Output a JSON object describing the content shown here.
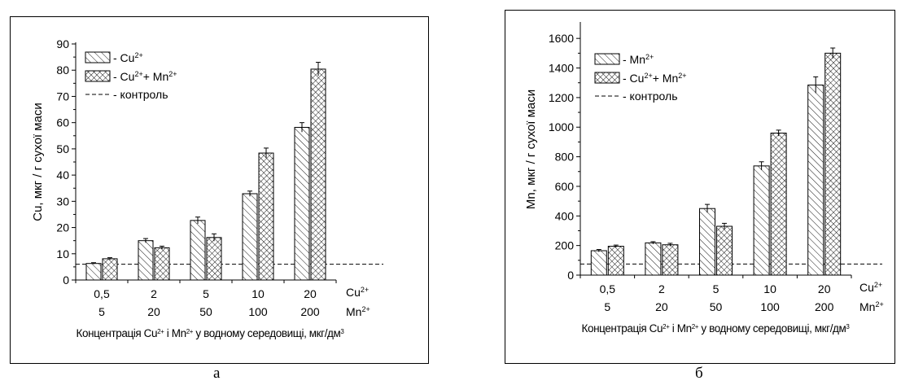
{
  "chart_data": [
    {
      "type": "bar",
      "panel_label": "а",
      "categories_top": [
        "0,5",
        "2",
        "5",
        "10",
        "20"
      ],
      "categories_bottom": [
        "5",
        "20",
        "50",
        "100",
        "200"
      ],
      "row_label_top": {
        "base": "Cu",
        "sup": "2+"
      },
      "row_label_bottom": {
        "base": "Mn",
        "sup": "2+"
      },
      "ylabel": "Cu,  мкг / г  сухої  маси",
      "xlabel": {
        "p1": "Концентрація Cu",
        "s1": "2+",
        "p2": " і Mn",
        "s2": "2+",
        "p3": " у водному середовищі, мкг/дм",
        "s3": "3"
      },
      "yticks": [
        "0",
        "10",
        "20",
        "30",
        "40",
        "50",
        "60",
        "70",
        "80",
        "90"
      ],
      "ylim": [
        0,
        90
      ],
      "control_value": 6,
      "series": [
        {
          "name": "- Cu",
          "sup": "2+",
          "pattern": "diagonal",
          "values": [
            6.3,
            15,
            22.7,
            32.9,
            58.2
          ],
          "errors": [
            0.3,
            0.8,
            1.3,
            1.0,
            1.8
          ]
        },
        {
          "name": "- Cu",
          "sup": "2+",
          "name2": "+ Mn",
          "sup2": "2+",
          "pattern": "crosshatch",
          "values": [
            8.1,
            12.3,
            16.2,
            48.4,
            80.4
          ],
          "errors": [
            0.4,
            0.6,
            1.4,
            1.9,
            2.6
          ]
        }
      ],
      "control_label": "- контроль"
    },
    {
      "type": "bar",
      "panel_label": "б",
      "categories_top": [
        "0,5",
        "2",
        "5",
        "10",
        "20"
      ],
      "categories_bottom": [
        "5",
        "20",
        "50",
        "100",
        "200"
      ],
      "row_label_top": {
        "base": "Cu",
        "sup": "2+"
      },
      "row_label_bottom": {
        "base": "Mn",
        "sup": "2+"
      },
      "ylabel": "Mn,  мкг / г  сухої  маси",
      "xlabel": {
        "p1": "Концентрація Cu",
        "s1": "2+",
        "p2": " і Mn",
        "s2": "2+",
        "p3": " у водному середовищі, мкг/дм",
        "s3": "3"
      },
      "yticks": [
        "0",
        "200",
        "400",
        "600",
        "800",
        "1000",
        "1200",
        "1400",
        "1600"
      ],
      "ylim": [
        0,
        1700
      ],
      "control_value": 75,
      "series": [
        {
          "name": "- Mn",
          "sup": "2+",
          "pattern": "diagonal",
          "values": [
            165,
            218,
            450,
            738,
            1285
          ],
          "errors": [
            8,
            8,
            28,
            28,
            55
          ]
        },
        {
          "name": "- Cu",
          "sup": "2+",
          "name2": "+ Mn",
          "sup2": "2+",
          "pattern": "crosshatch",
          "values": [
            195,
            205,
            330,
            960,
            1500
          ],
          "errors": [
            8,
            10,
            20,
            20,
            35
          ]
        }
      ],
      "control_label": "- контроль"
    }
  ]
}
